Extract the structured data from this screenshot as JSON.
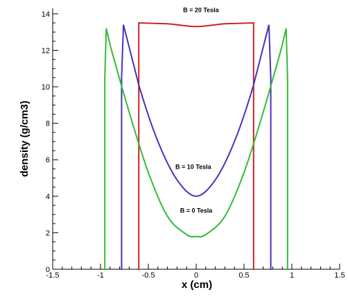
{
  "chart_data": {
    "type": "line",
    "title": "",
    "xlabel": "x (cm)",
    "ylabel": "density (g/cm3)",
    "xlim": [
      -1.5,
      1.5
    ],
    "ylim": [
      0,
      14.3
    ],
    "xticks": [
      -1.5,
      -1,
      -0.5,
      0,
      0.5,
      1,
      1.5
    ],
    "xtick_labels": [
      "-1.5",
      "-1",
      "-0.5",
      "0",
      "0.5",
      "1",
      "1.5"
    ],
    "yticks": [
      0,
      2,
      4,
      6,
      8,
      10,
      12,
      14
    ],
    "ytick_labels": [
      "0",
      "2",
      "4",
      "6",
      "8",
      "10",
      "12",
      "14"
    ],
    "grid": false,
    "legend": "none",
    "series": [
      {
        "color": "#cc2222",
        "x": [
          -0.61,
          -0.6,
          -0.6,
          -0.3,
          0,
          0.3,
          0.6,
          0.6,
          0.61
        ],
        "y": [
          0,
          0,
          13.5,
          13.45,
          13.3,
          13.45,
          13.5,
          0,
          0
        ]
      },
      {
        "color": "#4433bb",
        "x": [
          -0.785,
          -0.78,
          -0.78,
          -0.76,
          -0.6,
          -0.4,
          -0.2,
          0,
          0.2,
          0.4,
          0.6,
          0.76,
          0.78,
          0.78,
          0.785
        ],
        "y": [
          0,
          0,
          10.5,
          13.4,
          10.1,
          7.0,
          4.9,
          4.0,
          4.9,
          7.0,
          10.1,
          13.4,
          10.5,
          0,
          0
        ]
      },
      {
        "color": "#33bb33",
        "x": [
          -0.96,
          -0.955,
          -0.955,
          -0.94,
          -0.9,
          -0.7,
          -0.5,
          -0.3,
          -0.1,
          0,
          0.1,
          0.3,
          0.5,
          0.7,
          0.9,
          0.94,
          0.955,
          0.955,
          0.96
        ],
        "y": [
          0,
          0,
          10.5,
          13.2,
          12.3,
          8.6,
          5.3,
          2.9,
          1.9,
          1.8,
          1.9,
          2.9,
          5.3,
          8.6,
          12.3,
          13.2,
          10.5,
          0,
          0
        ]
      }
    ],
    "annotations": [
      {
        "text": "B = 20 Tesla",
        "x": 0.05,
        "y": 14.1
      },
      {
        "text": "B = 10 Tesla",
        "x": -0.03,
        "y": 5.5
      },
      {
        "text": "B = 0 Tesla",
        "x": 0,
        "y": 3.1
      }
    ]
  }
}
